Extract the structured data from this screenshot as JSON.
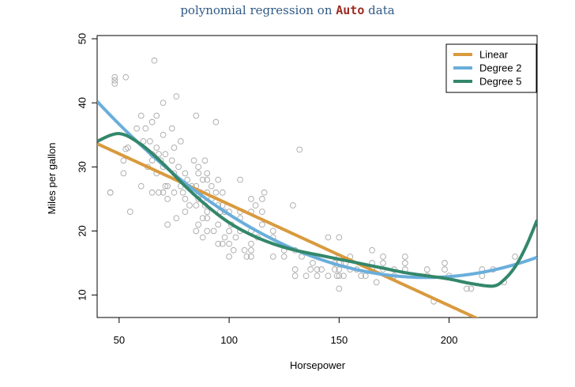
{
  "title": {
    "prefix": "polynomial regression on ",
    "code": "Auto",
    "suffix": " data"
  },
  "chart_data": {
    "type": "scatter",
    "xlabel": "Horsepower",
    "ylabel": "Miles per gallon",
    "xlim": [
      40,
      240
    ],
    "ylim": [
      6.5,
      50.5
    ],
    "xticks": [
      50,
      100,
      150,
      200
    ],
    "yticks": [
      10,
      20,
      30,
      40,
      50
    ],
    "grid": false,
    "legend_position": "top-right",
    "point_color": "#a8a8a8",
    "points": [
      [
        46,
        26
      ],
      [
        46,
        26
      ],
      [
        48,
        44
      ],
      [
        48,
        43.5
      ],
      [
        48,
        43
      ],
      [
        52,
        29
      ],
      [
        52,
        31
      ],
      [
        53,
        32.8
      ],
      [
        53,
        44
      ],
      [
        54,
        33
      ],
      [
        55,
        23
      ],
      [
        58,
        36
      ],
      [
        60,
        27
      ],
      [
        60,
        38
      ],
      [
        61,
        34
      ],
      [
        62,
        36
      ],
      [
        63,
        30
      ],
      [
        64,
        34
      ],
      [
        65,
        37
      ],
      [
        65,
        32
      ],
      [
        65,
        26
      ],
      [
        65,
        31
      ],
      [
        66,
        46.6
      ],
      [
        67,
        38
      ],
      [
        67,
        33
      ],
      [
        67,
        29
      ],
      [
        68,
        32
      ],
      [
        68,
        26
      ],
      [
        69,
        31
      ],
      [
        70,
        26
      ],
      [
        70,
        30
      ],
      [
        70,
        35
      ],
      [
        70,
        40
      ],
      [
        71,
        32
      ],
      [
        71,
        27
      ],
      [
        72,
        27
      ],
      [
        72,
        21
      ],
      [
        72,
        25
      ],
      [
        74,
        31
      ],
      [
        74,
        36
      ],
      [
        75,
        26
      ],
      [
        75,
        33
      ],
      [
        75,
        29
      ],
      [
        76,
        22
      ],
      [
        76,
        41
      ],
      [
        77,
        30
      ],
      [
        78,
        34
      ],
      [
        78,
        27
      ],
      [
        79,
        26
      ],
      [
        80,
        25
      ],
      [
        80,
        29
      ],
      [
        80,
        23
      ],
      [
        81,
        28
      ],
      [
        82,
        24
      ],
      [
        83,
        27
      ],
      [
        84,
        31
      ],
      [
        84,
        26
      ],
      [
        85,
        24
      ],
      [
        85,
        38
      ],
      [
        85,
        27
      ],
      [
        85,
        20
      ],
      [
        86,
        30
      ],
      [
        86,
        29
      ],
      [
        86,
        21
      ],
      [
        86,
        25
      ],
      [
        87,
        26
      ],
      [
        88,
        28
      ],
      [
        88,
        25
      ],
      [
        88,
        19
      ],
      [
        88,
        22
      ],
      [
        89,
        31
      ],
      [
        89,
        24
      ],
      [
        90,
        23
      ],
      [
        90,
        28
      ],
      [
        90,
        29
      ],
      [
        90,
        26
      ],
      [
        90,
        20
      ],
      [
        90,
        22
      ],
      [
        92,
        27
      ],
      [
        92,
        25
      ],
      [
        93,
        20
      ],
      [
        94,
        26
      ],
      [
        94,
        37
      ],
      [
        95,
        21
      ],
      [
        95,
        24
      ],
      [
        95,
        18
      ],
      [
        95,
        28
      ],
      [
        96,
        23
      ],
      [
        97,
        26
      ],
      [
        97,
        24
      ],
      [
        97,
        18
      ],
      [
        98,
        19
      ],
      [
        98,
        23
      ],
      [
        100,
        16
      ],
      [
        100,
        18
      ],
      [
        100,
        20
      ],
      [
        100,
        23
      ],
      [
        101,
        21
      ],
      [
        102,
        17
      ],
      [
        103,
        19
      ],
      [
        105,
        20
      ],
      [
        105,
        28
      ],
      [
        105,
        22
      ],
      [
        105,
        23
      ],
      [
        107,
        17
      ],
      [
        108,
        16
      ],
      [
        110,
        20
      ],
      [
        110,
        16
      ],
      [
        110,
        17
      ],
      [
        110,
        18
      ],
      [
        110,
        23
      ],
      [
        110,
        25
      ],
      [
        112,
        24
      ],
      [
        113,
        19
      ],
      [
        115,
        21
      ],
      [
        115,
        23
      ],
      [
        115,
        25
      ],
      [
        116,
        26
      ],
      [
        120,
        19
      ],
      [
        120,
        20
      ],
      [
        120,
        16
      ],
      [
        125,
        17
      ],
      [
        125,
        16
      ],
      [
        129,
        24
      ],
      [
        130,
        14
      ],
      [
        130,
        13
      ],
      [
        130,
        17
      ],
      [
        132,
        32.7
      ],
      [
        133,
        16
      ],
      [
        135,
        13
      ],
      [
        137,
        14
      ],
      [
        138,
        15
      ],
      [
        140,
        16
      ],
      [
        140,
        13
      ],
      [
        140,
        14
      ],
      [
        142,
        14
      ],
      [
        145,
        13
      ],
      [
        145,
        19
      ],
      [
        148,
        14
      ],
      [
        148,
        15
      ],
      [
        149,
        13
      ],
      [
        150,
        14
      ],
      [
        150,
        15
      ],
      [
        150,
        16
      ],
      [
        150,
        13
      ],
      [
        150,
        19
      ],
      [
        150,
        11
      ],
      [
        152,
        13
      ],
      [
        153,
        15
      ],
      [
        155,
        14
      ],
      [
        155,
        16
      ],
      [
        158,
        14
      ],
      [
        160,
        13
      ],
      [
        162,
        13
      ],
      [
        165,
        14
      ],
      [
        165,
        17
      ],
      [
        165,
        15
      ],
      [
        167,
        12
      ],
      [
        170,
        15
      ],
      [
        170,
        16
      ],
      [
        170,
        14
      ],
      [
        175,
        13
      ],
      [
        175,
        14
      ],
      [
        180,
        16
      ],
      [
        180,
        15
      ],
      [
        180,
        14
      ],
      [
        190,
        14
      ],
      [
        190,
        13
      ],
      [
        193,
        9
      ],
      [
        198,
        14
      ],
      [
        198,
        15
      ],
      [
        200,
        13
      ],
      [
        208,
        11
      ],
      [
        210,
        11
      ],
      [
        215,
        14
      ],
      [
        215,
        13
      ],
      [
        220,
        14
      ],
      [
        225,
        12
      ],
      [
        230,
        16
      ]
    ],
    "series": [
      {
        "name": "Linear",
        "color": "#d99a3e",
        "coef": [
          39.935861,
          -0.157845
        ]
      },
      {
        "name": "Degree 2",
        "color": "#6aaedb",
        "coef": [
          56.9001,
          -0.46618,
          0.0012305
        ]
      },
      {
        "name": "Degree 5",
        "color": "#33876a",
        "points": [
          [
            40,
            34.0
          ],
          [
            50,
            35.2
          ],
          [
            60,
            33.5
          ],
          [
            70,
            30.5
          ],
          [
            80,
            27.0
          ],
          [
            90,
            23.9
          ],
          [
            100,
            21.3
          ],
          [
            110,
            19.4
          ],
          [
            120,
            18.0
          ],
          [
            130,
            17.0
          ],
          [
            140,
            16.3
          ],
          [
            150,
            15.6
          ],
          [
            160,
            14.9
          ],
          [
            170,
            14.2
          ],
          [
            180,
            13.5
          ],
          [
            190,
            13.0
          ],
          [
            200,
            12.5
          ],
          [
            210,
            11.8
          ],
          [
            220,
            11.4
          ],
          [
            225,
            12.4
          ],
          [
            230,
            14.4
          ],
          [
            235,
            17.6
          ],
          [
            240,
            21.7
          ]
        ]
      }
    ]
  }
}
